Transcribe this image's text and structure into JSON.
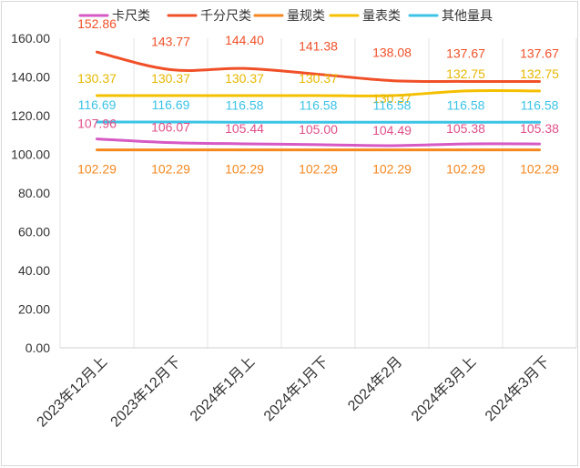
{
  "chart_data": {
    "type": "line",
    "title": "",
    "xlabel": "",
    "ylabel": "",
    "ylim": [
      0,
      160
    ],
    "yticks": [
      "0.00",
      "20.00",
      "40.00",
      "60.00",
      "80.00",
      "100.00",
      "120.00",
      "140.00",
      "160.00"
    ],
    "grid": "vertical",
    "legend": "top",
    "categories": [
      "2023年12月上",
      "2023年12月下",
      "2024年1月上",
      "2024年1月下",
      "2024年2月",
      "2024年3月上",
      "2024年3月下"
    ],
    "series": [
      {
        "name": "卡尺类",
        "color": "#d659c4",
        "label_color": "#e0508a",
        "values": [
          107.96,
          106.07,
          105.44,
          105.0,
          104.49,
          105.38,
          105.38
        ]
      },
      {
        "name": "千分尺类",
        "color": "#f05028",
        "label_color": "#f05028",
        "values": [
          152.86,
          143.77,
          144.4,
          141.38,
          138.08,
          137.67,
          137.67
        ]
      },
      {
        "name": "量规类",
        "color": "#f5871f",
        "label_color": "#f5871f",
        "values": [
          102.29,
          102.29,
          102.29,
          102.29,
          102.29,
          102.29,
          102.29
        ]
      },
      {
        "name": "量表类",
        "color": "#f5c000",
        "label_color": "#e6b800",
        "values": [
          130.37,
          130.37,
          130.37,
          130.37,
          130.37,
          132.75,
          132.75
        ]
      },
      {
        "name": "其他量具",
        "color": "#3cc3e6",
        "label_color": "#3cc3e6",
        "values": [
          116.69,
          116.69,
          116.58,
          116.58,
          116.58,
          116.58,
          116.58
        ]
      }
    ]
  }
}
